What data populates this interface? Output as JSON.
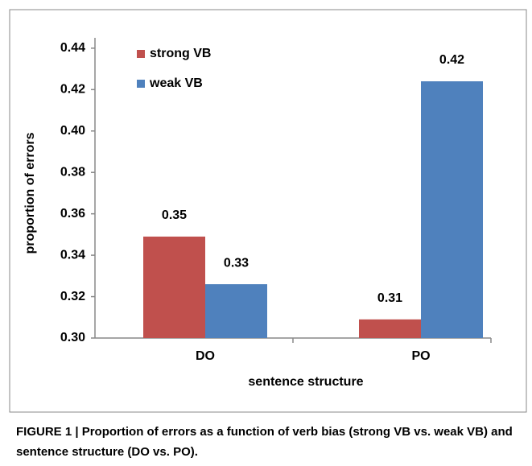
{
  "chart_data": {
    "type": "bar",
    "y_label": "proportion of errors",
    "x_label": "sentence structure",
    "categories": [
      "DO",
      "PO"
    ],
    "series": [
      {
        "name": "strong VB",
        "color": "#c0504d",
        "values": [
          0.349,
          0.309
        ],
        "value_labels": [
          "0.35",
          "0.31"
        ]
      },
      {
        "name": "weak VB",
        "color": "#4f81bd",
        "values": [
          0.326,
          0.424
        ],
        "value_labels": [
          "0.33",
          "0.42"
        ]
      }
    ],
    "ylim": [
      0.3,
      0.445
    ],
    "yticks": [
      {
        "value": 0.3,
        "label": "0.30"
      },
      0.32,
      0.34,
      0.36,
      0.38,
      {
        "value": 0.4,
        "label": "0.40"
      },
      0.42,
      0.44
    ],
    "legend": "upper left",
    "caption": "FIGURE 1 | Proportion of errors as a function of verb bias (strong VB vs. weak VB) and sentence structure (DO vs. PO)."
  }
}
